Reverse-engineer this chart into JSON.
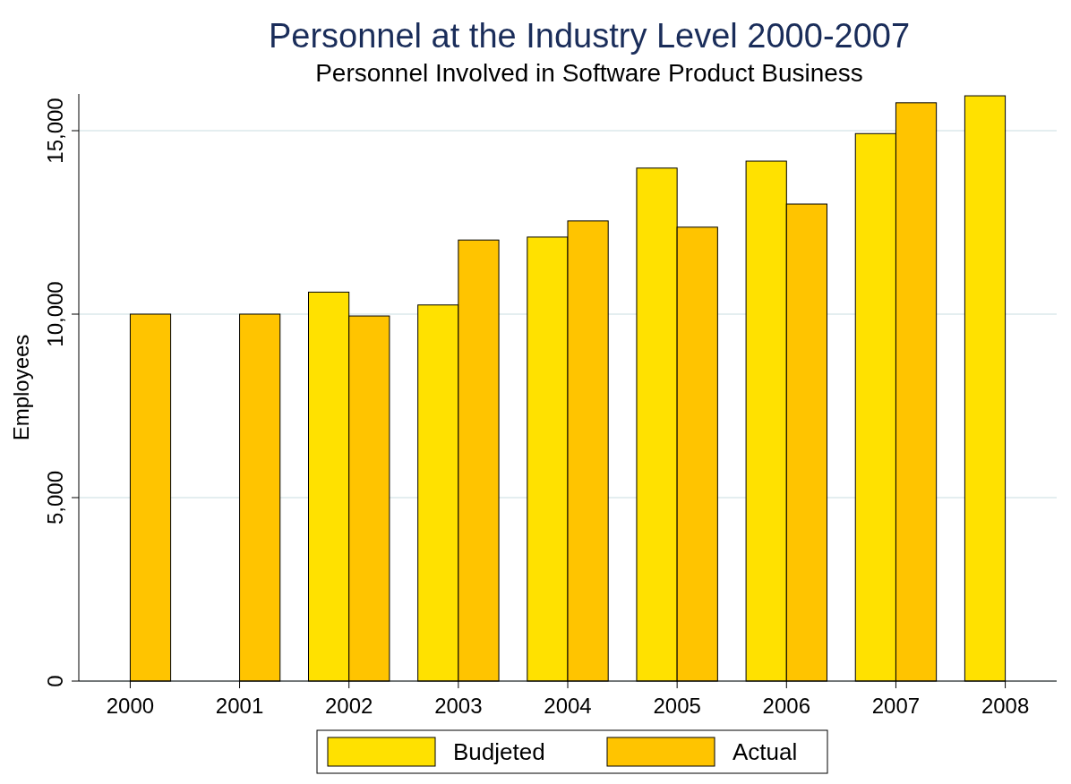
{
  "chart_data": {
    "type": "bar",
    "title": "Personnel at the Industry Level 2000-2007",
    "subtitle": "Personnel Involved in Software Product Business",
    "ylabel": "Employees",
    "categories": [
      "2000",
      "2001",
      "2002",
      "2003",
      "2004",
      "2005",
      "2006",
      "2007",
      "2008"
    ],
    "series": [
      {
        "name": "Budjeted",
        "color": "#ffe100",
        "values": [
          null,
          null,
          10600,
          10250,
          12100,
          13980,
          14170,
          14920,
          15950
        ]
      },
      {
        "name": "Actual",
        "color": "#ffc400",
        "values": [
          10000,
          10000,
          9950,
          12020,
          12540,
          12370,
          13000,
          15760,
          null
        ]
      }
    ],
    "ylim": [
      0,
      16000
    ],
    "yticks": [
      0,
      {
        "value": 5000,
        "label": "5,000"
      },
      {
        "value": 10000,
        "label": "10,000"
      },
      {
        "value": 15000,
        "label": "15,000"
      }
    ],
    "grid": "y",
    "legend": "bottom"
  }
}
